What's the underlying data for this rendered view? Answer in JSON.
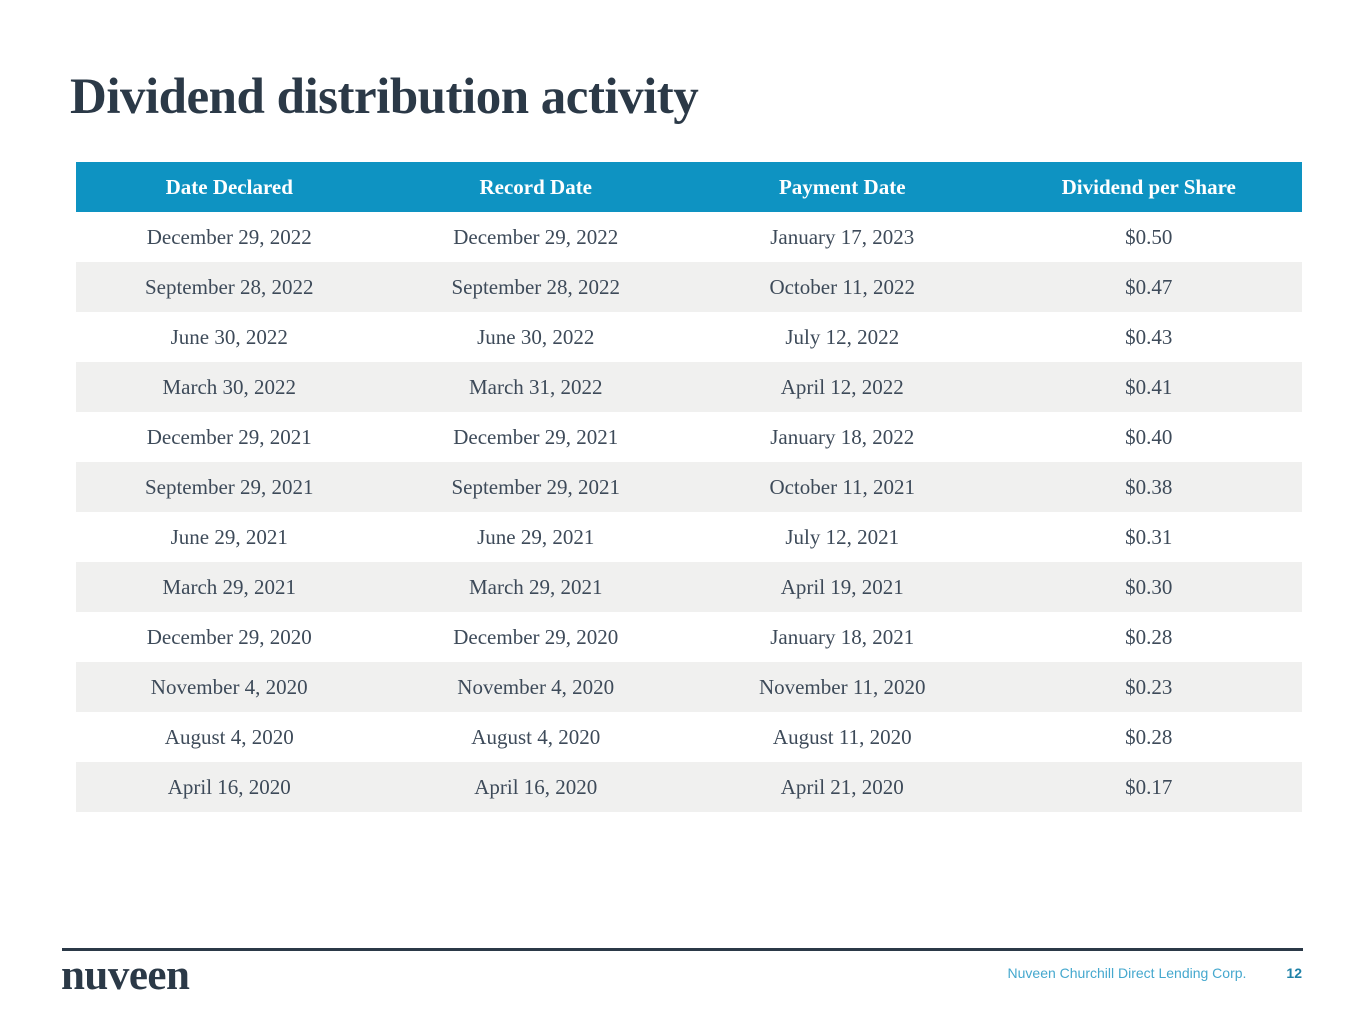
{
  "slide": {
    "title": "Dividend distribution activity"
  },
  "table": {
    "columns": [
      "Date Declared",
      "Record Date",
      "Payment Date",
      "Dividend per Share"
    ],
    "rows": [
      [
        "December 29, 2022",
        "December 29, 2022",
        "January 17, 2023",
        "$0.50"
      ],
      [
        "September 28, 2022",
        "September 28, 2022",
        "October 11, 2022",
        "$0.47"
      ],
      [
        "June 30, 2022",
        "June 30, 2022",
        "July 12, 2022",
        "$0.43"
      ],
      [
        "March 30, 2022",
        "March 31, 2022",
        "April 12, 2022",
        "$0.41"
      ],
      [
        "December 29, 2021",
        "December 29, 2021",
        "January 18, 2022",
        "$0.40"
      ],
      [
        "September 29, 2021",
        "September 29, 2021",
        "October 11, 2021",
        "$0.38"
      ],
      [
        "June 29, 2021",
        "June 29, 2021",
        "July 12, 2021",
        "$0.31"
      ],
      [
        "March 29, 2021",
        "March 29, 2021",
        "April 19, 2021",
        "$0.30"
      ],
      [
        "December 29, 2020",
        "December 29, 2020",
        "January 18, 2021",
        "$0.28"
      ],
      [
        "November 4, 2020",
        "November 4, 2020",
        "November 11, 2020",
        "$0.23"
      ],
      [
        "August 4, 2020",
        "August 4, 2020",
        "August 11, 2020",
        "$0.28"
      ],
      [
        "April 16, 2020",
        "April 16, 2020",
        "April 21, 2020",
        "$0.17"
      ]
    ]
  },
  "footer": {
    "logo_text": "nuveen",
    "company_name": "Nuveen Churchill Direct Lending Corp.",
    "page_number": "12"
  },
  "colors": {
    "header_bg": "#0e93c2",
    "alt_row_bg": "#f0f0ef",
    "body_text": "#3d4a59",
    "title_text": "#2b3947",
    "footer_company": "#45a8ce",
    "footer_page_number": "#1e81a7"
  }
}
